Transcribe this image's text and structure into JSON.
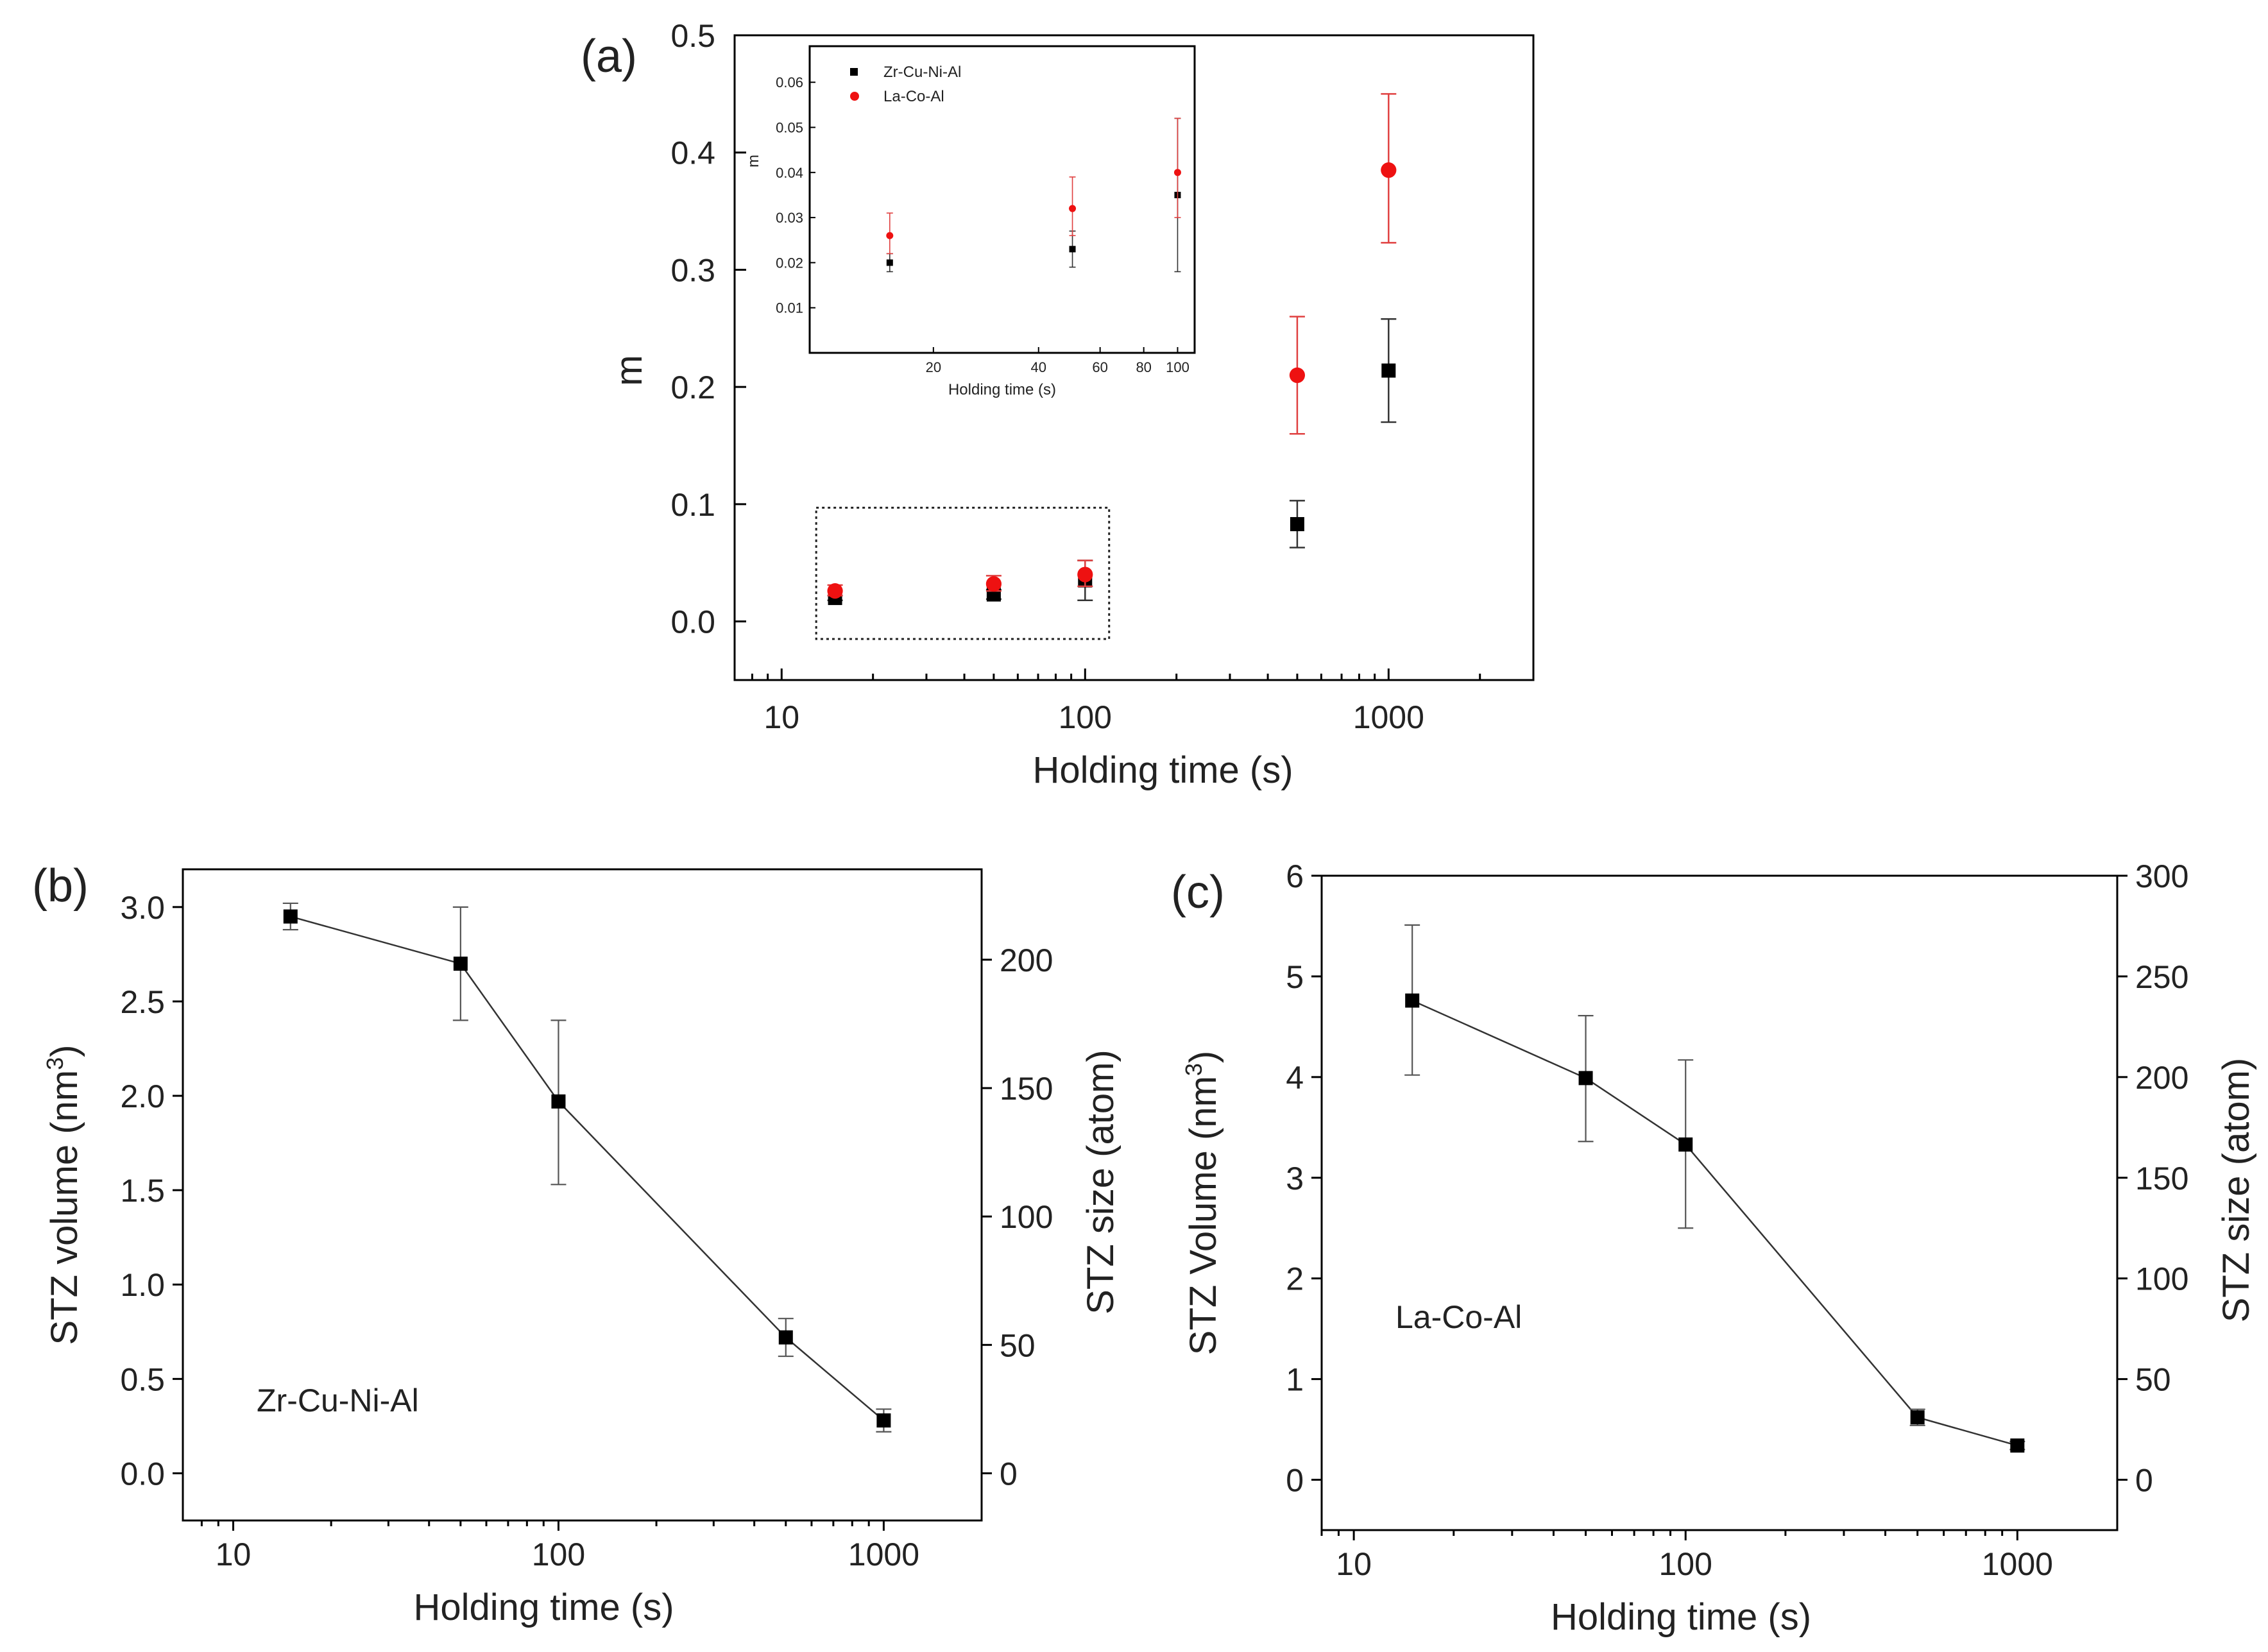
{
  "chart_data": [
    {
      "panel": "(a)",
      "type": "scatter",
      "xscale": "log",
      "xlim": [
        7,
        3000
      ],
      "ylim": [
        -0.05,
        0.5
      ],
      "xticks": [
        10,
        100,
        1000
      ],
      "xtick_labels": [
        "10",
        "100",
        "1000"
      ],
      "yticks": [
        0.0,
        0.1,
        0.2,
        0.3,
        0.4,
        0.5
      ],
      "ytick_labels": [
        "0.0",
        "0.1",
        "0.2",
        "0.3",
        "0.4",
        "0.5"
      ],
      "xlabel": "Holding time (s)",
      "ylabel": "m",
      "series": [
        {
          "name": "Zr-Cu-Ni-Al",
          "color": "#000000",
          "marker": "square",
          "x": [
            15,
            50,
            100,
            500,
            1000
          ],
          "y": [
            0.02,
            0.023,
            0.035,
            0.083,
            0.214
          ],
          "err_lo": [
            0.018,
            0.019,
            0.018,
            0.063,
            0.17
          ],
          "err_hi": [
            0.022,
            0.027,
            0.052,
            0.103,
            0.258
          ]
        },
        {
          "name": "La-Co-Al",
          "color": "#ee1111",
          "marker": "circle",
          "x": [
            15,
            50,
            100,
            500,
            1000
          ],
          "y": [
            0.026,
            0.032,
            0.04,
            0.21,
            0.385
          ],
          "err_lo": [
            0.022,
            0.026,
            0.03,
            0.16,
            0.323
          ],
          "err_hi": [
            0.031,
            0.039,
            0.052,
            0.26,
            0.45
          ]
        }
      ],
      "highlight_box": {
        "x": [
          13,
          120
        ],
        "y": [
          -0.015,
          0.097
        ]
      },
      "inset": {
        "xscale": "log",
        "xlim": [
          9,
          110
        ],
        "ylim": [
          0.0,
          0.068
        ],
        "xticks": [
          20,
          40,
          60,
          80,
          100
        ],
        "xtick_labels": [
          "20",
          "40",
          "60",
          "80",
          "100"
        ],
        "yticks": [
          0.01,
          0.02,
          0.03,
          0.04,
          0.05,
          0.06
        ],
        "ytick_labels": [
          "0.01",
          "0.02",
          "0.03",
          "0.04",
          "0.05",
          "0.06"
        ],
        "xlabel": "Holding time (s)",
        "ylabel": "m",
        "legend": [
          "Zr-Cu-Ni-Al",
          "La-Co-Al"
        ]
      }
    },
    {
      "panel": "(b)",
      "type": "line",
      "xscale": "log",
      "xlim": [
        7,
        2000
      ],
      "ylim": [
        -0.25,
        3.2
      ],
      "xticks": [
        10,
        100,
        1000
      ],
      "xtick_labels": [
        "10",
        "100",
        "1000"
      ],
      "yticks": [
        0.0,
        0.5,
        1.0,
        1.5,
        2.0,
        2.5,
        3.0
      ],
      "ytick_labels": [
        "0.0",
        "0.5",
        "1.0",
        "1.5",
        "2.0",
        "2.5",
        "3.0"
      ],
      "y2ticks": [
        0,
        50,
        100,
        150,
        200
      ],
      "y2tick_labels": [
        "0",
        "50",
        "100",
        "150",
        "200"
      ],
      "y2_per_y": 73.5,
      "xlabel": "Holding time (s)",
      "ylabel": "STZ volume (nm",
      "ylabel_sup": "3",
      "ylabel_tail": ")",
      "y2label": "STZ size (atom)",
      "annotation": "Zr-Cu-Ni-Al",
      "series": [
        {
          "name": "Zr-Cu-Ni-Al",
          "color": "#000000",
          "marker": "square",
          "x": [
            15,
            50,
            100,
            500,
            1000
          ],
          "y": [
            2.95,
            2.7,
            1.97,
            0.72,
            0.28
          ],
          "err_lo": [
            2.88,
            2.4,
            1.53,
            0.62,
            0.22
          ],
          "err_hi": [
            3.02,
            3.0,
            2.4,
            0.82,
            0.34
          ]
        }
      ]
    },
    {
      "panel": "(c)",
      "type": "line",
      "xscale": "log",
      "xlim": [
        8,
        2000
      ],
      "ylim": [
        -0.5,
        6.0
      ],
      "xticks": [
        10,
        100,
        1000
      ],
      "xtick_labels": [
        "10",
        "100",
        "1000"
      ],
      "yticks": [
        0,
        1,
        2,
        3,
        4,
        5,
        6
      ],
      "ytick_labels": [
        "0",
        "1",
        "2",
        "3",
        "4",
        "5",
        "6"
      ],
      "y2ticks": [
        0,
        50,
        100,
        150,
        200,
        250,
        300
      ],
      "y2tick_labels": [
        "0",
        "50",
        "100",
        "150",
        "200",
        "250",
        "300"
      ],
      "y2_per_y": 50,
      "xlabel": "Holding time (s)",
      "ylabel": "STZ Volume (nm",
      "ylabel_sup": "3",
      "ylabel_tail": ")",
      "y2label": "STZ size (atom)",
      "annotation": "La-Co-Al",
      "series": [
        {
          "name": "La-Co-Al",
          "color": "#000000",
          "marker": "square",
          "x": [
            15,
            50,
            100,
            500,
            1000
          ],
          "y": [
            4.76,
            3.99,
            3.33,
            0.62,
            0.34
          ],
          "err_lo": [
            4.02,
            3.36,
            2.5,
            0.54,
            0.3
          ],
          "err_hi": [
            5.51,
            4.61,
            4.17,
            0.7,
            0.38
          ]
        }
      ]
    }
  ]
}
